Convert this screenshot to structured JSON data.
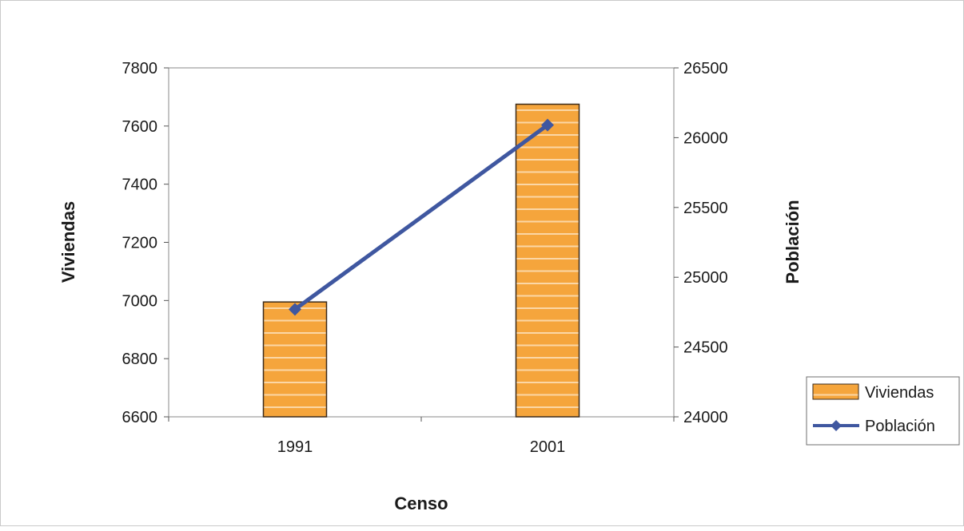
{
  "chart_data": {
    "type": "bar",
    "title": "",
    "xlabel": "Censo",
    "ylabel": "Viviendas",
    "y2label": "Población",
    "categories": [
      "1991",
      "2001"
    ],
    "ylim": [
      6600,
      7800
    ],
    "y_ticks": [
      6600,
      6800,
      7000,
      7200,
      7400,
      7600,
      7800
    ],
    "y2lim": [
      24000,
      26500
    ],
    "y2_ticks": [
      24000,
      24500,
      25000,
      25500,
      26000,
      26500
    ],
    "grid": false,
    "legend_position": "bottom-right",
    "series": [
      {
        "name": "Viviendas",
        "type": "bar",
        "axis": "left",
        "values": [
          6995,
          7675
        ],
        "color": "#f5a53c",
        "stripe_color": "#fbd7a6",
        "edge_color": "#3b2a1a"
      },
      {
        "name": "Población",
        "type": "line",
        "axis": "right",
        "marker": "diamond",
        "values": [
          24770,
          26090
        ],
        "color": "#3f57a0"
      }
    ]
  }
}
